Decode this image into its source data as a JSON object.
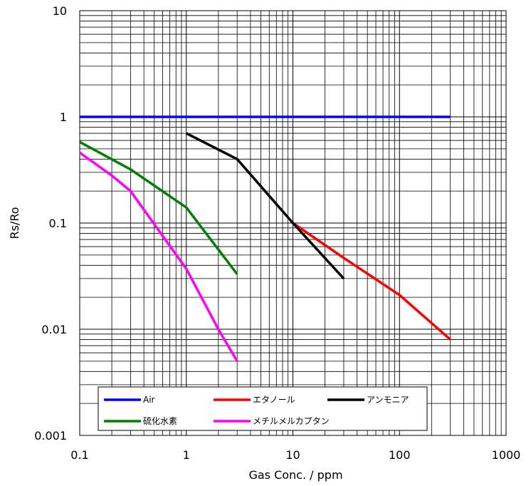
{
  "chart_data": {
    "type": "line",
    "xlabel": "Gas Conc. / ppm",
    "ylabel": "Rs/Ro",
    "xscale": "log",
    "yscale": "log",
    "xlim": [
      0.1,
      1000
    ],
    "ylim": [
      0.001,
      10
    ],
    "x_tick_labels": [
      "0.1",
      "1",
      "10",
      "100",
      "1000"
    ],
    "y_tick_labels": [
      "0.001",
      "0.01",
      "0.1",
      "1",
      "10"
    ],
    "grid": true,
    "legend_position": "bottom-inside",
    "series": [
      {
        "name": "Air",
        "color": "#0000ff",
        "x": [
          0.1,
          300
        ],
        "y": [
          1,
          1
        ]
      },
      {
        "name": "エタノール",
        "color": "#ff0000",
        "x": [
          10,
          30,
          100,
          300
        ],
        "y": [
          0.1,
          0.047,
          0.021,
          0.008
        ]
      },
      {
        "name": "アンモニア",
        "color": "#000000",
        "x": [
          1,
          3,
          10,
          30
        ],
        "y": [
          0.7,
          0.4,
          0.1,
          0.03
        ]
      },
      {
        "name": "硫化水素",
        "color": "#008000",
        "x": [
          0.1,
          0.3,
          1,
          3
        ],
        "y": [
          0.58,
          0.32,
          0.14,
          0.033
        ]
      },
      {
        "name": "メチルメルカプタン",
        "color": "#ff00ff",
        "x": [
          0.1,
          0.2,
          0.3,
          1,
          2,
          3
        ],
        "y": [
          0.46,
          0.28,
          0.2,
          0.037,
          0.01,
          0.005
        ]
      }
    ]
  }
}
